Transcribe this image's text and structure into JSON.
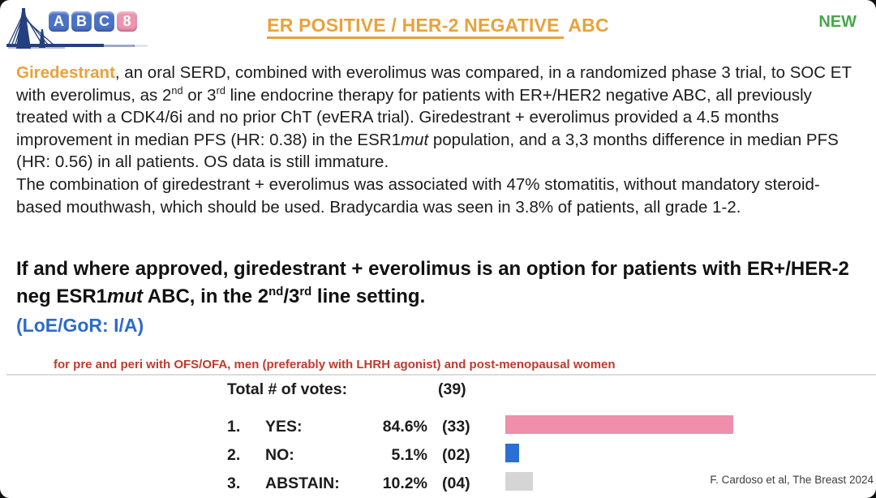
{
  "logo": {
    "letters": [
      "A",
      "B",
      "C",
      "8"
    ],
    "block_blue": "#4a72c8",
    "block_pink": "#f093b0",
    "bridge_color": "#24407e"
  },
  "header": {
    "title_underlined": "ER POSITIVE / HER-2 NEGATIVE",
    "title_rest": " ABC",
    "title_color": "#e9a23b",
    "badge": "NEW",
    "badge_color": "#45a949"
  },
  "intro": {
    "drug": "Giredestrant",
    "drug_color": "#e9a23b",
    "s1": ", an oral SERD, combined with everolimus was compared, in a randomized phase 3 trial, to SOC ET with everolimus, as 2",
    "sup1": "nd",
    "s2": " or 3",
    "sup2": "rd",
    "s3": " line endocrine therapy for patients with ER+/HER2 negative ABC, all previously treated with a CDK4/6i and no prior ChT (evERA trial). Giredestrant + everolimus provided a 4.5 months improvement in median PFS (HR: 0.38) in the ESR1",
    "ital1": "mut",
    "s4": " population, and a 3,3 months difference in median PFS (HR: 0.56) in all patients. OS data is still immature.",
    "p2": "The combination of giredestrant + everolimus was associated with 47% stomatitis, without mandatory steroid-based mouthwash, which should be used. Bradycardia was seen in 3.8% of patients, all grade 1-2."
  },
  "statement": {
    "s1": "If and where approved, giredestrant + everolimus is an option for patients with ER+/HER-2 neg ESR1",
    "ital": "mut",
    "s2": " ABC, in the 2",
    "sup1": "nd",
    "s3": "/3",
    "sup2": "rd",
    "s4": " line setting.",
    "loe": "(LoE/GoR: I/A)",
    "loe_color": "#2b6ccc"
  },
  "note": {
    "text": "for pre and peri with OFS/OFA, men (preferably with LHRH agonist) and post-menopausal women",
    "color": "#c03a2b"
  },
  "votes": {
    "header_label": "Total # of votes:",
    "header_count": "(39)",
    "rows": [
      {
        "num": "1.",
        "label": "YES:",
        "pct": "84.6%",
        "count": "(33)",
        "pct_value": 84.6,
        "color": "#ef8fab"
      },
      {
        "num": "2.",
        "label": "NO:",
        "pct": "5.1%",
        "count": "(02)",
        "pct_value": 5.1,
        "color": "#2b6fd6"
      },
      {
        "num": "3.",
        "label": "ABSTAIN:",
        "pct": "10.2%",
        "count": "(04)",
        "pct_value": 10.2,
        "color": "#d5d5d5"
      }
    ]
  },
  "citation": "F. Cardoso et al, The Breast 2024",
  "chart_data": {
    "type": "bar",
    "title": "Total # of votes: (39)",
    "categories": [
      "YES",
      "NO",
      "ABSTAIN"
    ],
    "series": [
      {
        "name": "percent",
        "values": [
          84.6,
          5.1,
          10.2
        ]
      },
      {
        "name": "count",
        "values": [
          33,
          2,
          4
        ]
      }
    ],
    "xlabel": "",
    "ylabel": "",
    "xlim": [
      0,
      100
    ],
    "orientation": "horizontal",
    "bar_colors": [
      "#ef8fab",
      "#2b6fd6",
      "#d5d5d5"
    ],
    "legend_position": "none",
    "grid": false
  }
}
